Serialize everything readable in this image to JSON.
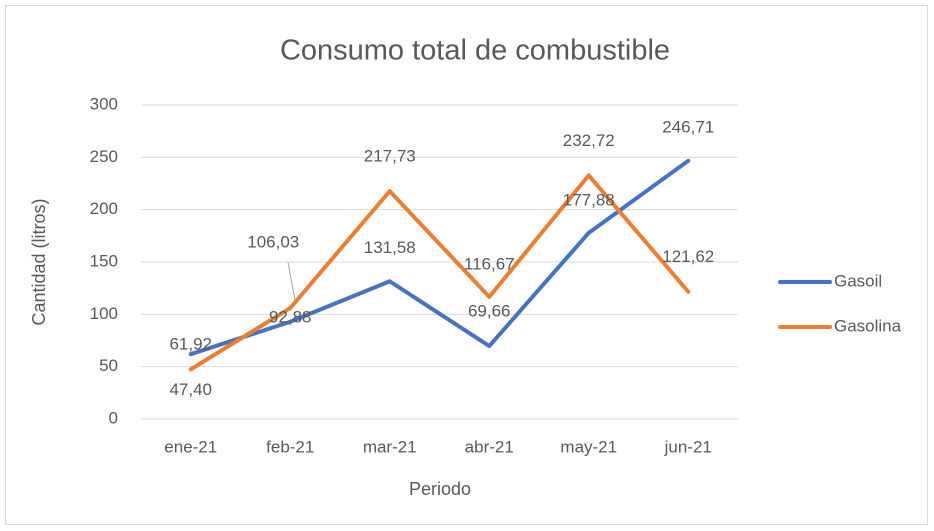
{
  "chart_data": {
    "type": "line",
    "title": "Consumo total de combustible",
    "x_label": "Periodo",
    "y_label": "Cantidad (litros)",
    "categories": [
      "ene-21",
      "feb-21",
      "mar-21",
      "abr-21",
      "may-21",
      "jun-21"
    ],
    "series": [
      {
        "name": "Gasoil",
        "color": "#4472c4",
        "values": [
          61.92,
          92.88,
          131.58,
          69.66,
          177.88,
          246.71
        ],
        "value_labels": [
          "61,92",
          "92,88",
          "131,58",
          "69,66",
          "177,88",
          "246,71"
        ]
      },
      {
        "name": "Gasolina",
        "color": "#ed7d31",
        "values": [
          47.4,
          106.03,
          217.73,
          116.67,
          232.72,
          121.62
        ],
        "value_labels": [
          "47,40",
          "106,03",
          "217,73",
          "116,67",
          "232,72",
          "121,62"
        ]
      }
    ],
    "ylim": [
      0,
      300
    ],
    "yticks": [
      0,
      50,
      100,
      150,
      200,
      250,
      300
    ],
    "grid": true,
    "legend": "right"
  }
}
